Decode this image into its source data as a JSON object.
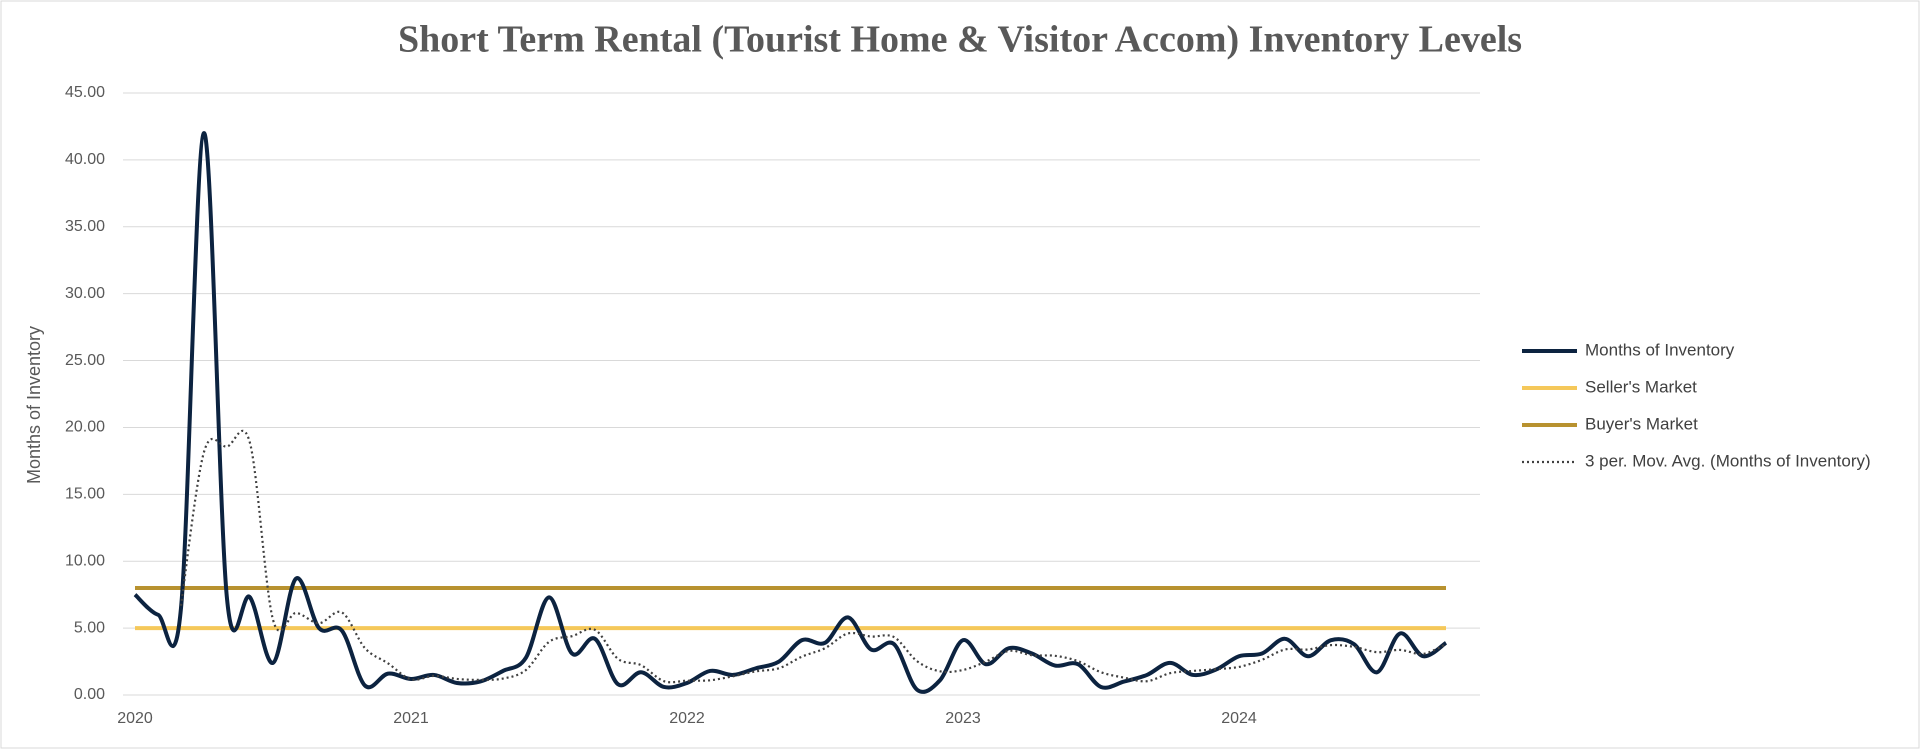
{
  "chart_data": {
    "type": "line",
    "title": "Short Term Rental (Tourist Home & Visitor Accom) Inventory Levels",
    "y_label": "Months of Inventory",
    "categories": [
      "2020",
      null,
      null,
      null,
      null,
      null,
      null,
      null,
      null,
      null,
      null,
      null,
      "2021",
      null,
      null,
      null,
      null,
      null,
      null,
      null,
      null,
      null,
      null,
      null,
      "2022",
      null,
      null,
      null,
      null,
      null,
      null,
      null,
      null,
      null,
      null,
      null,
      "2023",
      null,
      null,
      null,
      null,
      null,
      null,
      null,
      null,
      null,
      null,
      null,
      "2024",
      null,
      null,
      null,
      null,
      null,
      null,
      null,
      null,
      null
    ],
    "series": [
      {
        "name": "Months of Inventory",
        "color": "#0c2340",
        "style": "solid",
        "smooth": true,
        "values": [
          7.5,
          6.0,
          6.5,
          42,
          7.2,
          7.3,
          2.4,
          8.7,
          5.0,
          4.8,
          0.7,
          1.6,
          1.2,
          1.5,
          0.9,
          1.0,
          1.8,
          2.8,
          7.3,
          3.1,
          4.2,
          0.8,
          1.7,
          0.6,
          0.9,
          1.8,
          1.5,
          2.0,
          2.5,
          4.1,
          3.9,
          5.8,
          3.4,
          3.8,
          0.4,
          1.1,
          4.1,
          2.3,
          3.5,
          3.1,
          2.2,
          2.3,
          0.6,
          1.0,
          1.5,
          2.4,
          1.5,
          1.9,
          2.9,
          3.1,
          4.2,
          2.9,
          4.1,
          3.8,
          1.7,
          4.6,
          2.9,
          3.9
        ]
      },
      {
        "name": "Seller's Market",
        "color": "#f5c85a",
        "style": "solid",
        "smooth": false,
        "values": [
          5,
          5,
          5,
          5,
          5,
          5,
          5,
          5,
          5,
          5,
          5,
          5,
          5,
          5,
          5,
          5,
          5,
          5,
          5,
          5,
          5,
          5,
          5,
          5,
          5,
          5,
          5,
          5,
          5,
          5,
          5,
          5,
          5,
          5,
          5,
          5,
          5,
          5,
          5,
          5,
          5,
          5,
          5,
          5,
          5,
          5,
          5,
          5,
          5,
          5,
          5,
          5,
          5,
          5,
          5,
          5,
          5,
          5
        ]
      },
      {
        "name": "Buyer's Market",
        "color": "#b8922f",
        "style": "solid",
        "smooth": false,
        "values": [
          8,
          8,
          8,
          8,
          8,
          8,
          8,
          8,
          8,
          8,
          8,
          8,
          8,
          8,
          8,
          8,
          8,
          8,
          8,
          8,
          8,
          8,
          8,
          8,
          8,
          8,
          8,
          8,
          8,
          8,
          8,
          8,
          8,
          8,
          8,
          8,
          8,
          8,
          8,
          8,
          8,
          8,
          8,
          8,
          8,
          8,
          8,
          8,
          8,
          8,
          8,
          8,
          8,
          8,
          8,
          8,
          8,
          8
        ]
      },
      {
        "name": "3 per. Mov. Avg. (Months of Inventory)",
        "color": "#404040",
        "style": "dotted",
        "smooth": true,
        "values": [
          null,
          null,
          6.67,
          18.17,
          18.57,
          18.83,
          5.63,
          6.13,
          5.37,
          6.17,
          3.5,
          2.37,
          1.17,
          1.43,
          1.2,
          1.13,
          1.23,
          1.87,
          3.97,
          4.4,
          4.87,
          2.7,
          2.23,
          1.03,
          1.07,
          1.1,
          1.4,
          1.77,
          2.0,
          2.87,
          3.5,
          4.6,
          4.37,
          4.33,
          2.53,
          1.77,
          1.87,
          2.5,
          3.3,
          2.97,
          2.93,
          2.53,
          1.7,
          1.3,
          1.03,
          1.63,
          1.8,
          1.93,
          2.1,
          2.63,
          3.4,
          3.4,
          3.73,
          3.6,
          3.2,
          3.37,
          3.07,
          3.8
        ]
      }
    ],
    "ylim": [
      0,
      45
    ],
    "yticks": [
      {
        "value": 0,
        "label": "0.00"
      },
      {
        "value": 5,
        "label": "5.00"
      },
      {
        "value": 10,
        "label": "10.00"
      },
      {
        "value": 15,
        "label": "15.00"
      },
      {
        "value": 20,
        "label": "20.00"
      },
      {
        "value": 25,
        "label": "25.00"
      },
      {
        "value": 30,
        "label": "30.00"
      },
      {
        "value": 35,
        "label": "35.00"
      },
      {
        "value": 40,
        "label": "40.00"
      },
      {
        "value": 45,
        "label": "45.00"
      }
    ],
    "grid": true,
    "legend": "right"
  }
}
